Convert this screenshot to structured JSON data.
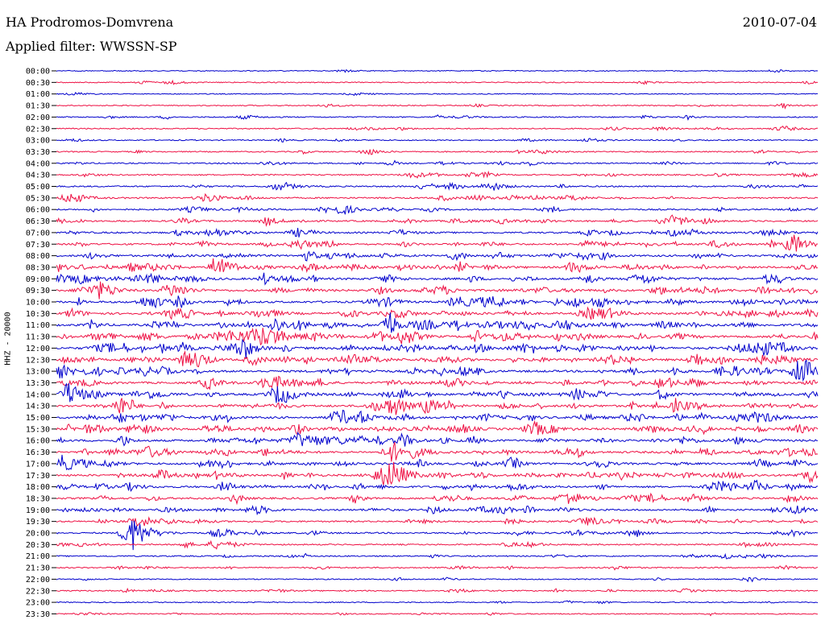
{
  "header": {
    "station": "HA Prodromos-Domvrena",
    "date": "2010-07-04",
    "filter": "Applied filter: WWSSN-SP"
  },
  "chart_data": {
    "type": "line",
    "ylabel": "HHZ - 20000",
    "colors": [
      "#0000cc",
      "#ee1144"
    ],
    "traces": [
      {
        "label": "00:00",
        "activity": 0.05
      },
      {
        "label": "00:30",
        "activity": 0.1
      },
      {
        "label": "01:00",
        "activity": 0.05
      },
      {
        "label": "01:30",
        "activity": 0.12
      },
      {
        "label": "02:00",
        "activity": 0.2
      },
      {
        "label": "02:30",
        "activity": 0.2
      },
      {
        "label": "03:00",
        "activity": 0.15
      },
      {
        "label": "03:30",
        "activity": 0.2
      },
      {
        "label": "04:00",
        "activity": 0.25
      },
      {
        "label": "04:30",
        "activity": 0.3
      },
      {
        "label": "05:00",
        "activity": 0.35
      },
      {
        "label": "05:30",
        "activity": 0.4
      },
      {
        "label": "06:00",
        "activity": 0.4
      },
      {
        "label": "06:30",
        "activity": 0.45
      },
      {
        "label": "07:00",
        "activity": 0.5
      },
      {
        "label": "07:30",
        "activity": 0.55
      },
      {
        "label": "08:00",
        "activity": 0.6
      },
      {
        "label": "08:30",
        "activity": 0.7
      },
      {
        "label": "09:00",
        "activity": 0.75
      },
      {
        "label": "09:30",
        "activity": 0.75
      },
      {
        "label": "10:00",
        "activity": 0.75
      },
      {
        "label": "10:30",
        "activity": 0.75
      },
      {
        "label": "11:00",
        "activity": 0.8
      },
      {
        "label": "11:30",
        "activity": 0.8
      },
      {
        "label": "12:00",
        "activity": 0.9
      },
      {
        "label": "12:30",
        "activity": 0.85
      },
      {
        "label": "13:00",
        "activity": 0.8
      },
      {
        "label": "13:30",
        "activity": 0.75
      },
      {
        "label": "14:00",
        "activity": 0.8
      },
      {
        "label": "14:30",
        "activity": 0.75
      },
      {
        "label": "15:00",
        "activity": 0.8
      },
      {
        "label": "15:30",
        "activity": 0.8
      },
      {
        "label": "16:00",
        "activity": 0.75
      },
      {
        "label": "16:30",
        "activity": 0.75
      },
      {
        "label": "17:00",
        "activity": 0.75
      },
      {
        "label": "17:30",
        "activity": 0.7
      },
      {
        "label": "18:00",
        "activity": 0.65
      },
      {
        "label": "18:30",
        "activity": 0.65
      },
      {
        "label": "19:00",
        "activity": 0.55
      },
      {
        "label": "19:30",
        "activity": 0.45
      },
      {
        "label": "20:00",
        "activity": 0.4
      },
      {
        "label": "20:30",
        "activity": 0.3
      },
      {
        "label": "21:00",
        "activity": 0.25
      },
      {
        "label": "21:30",
        "activity": 0.2
      },
      {
        "label": "22:00",
        "activity": 0.15
      },
      {
        "label": "22:30",
        "activity": 0.2
      },
      {
        "label": "23:00",
        "activity": 0.1
      },
      {
        "label": "23:30",
        "activity": 0.15
      }
    ]
  }
}
